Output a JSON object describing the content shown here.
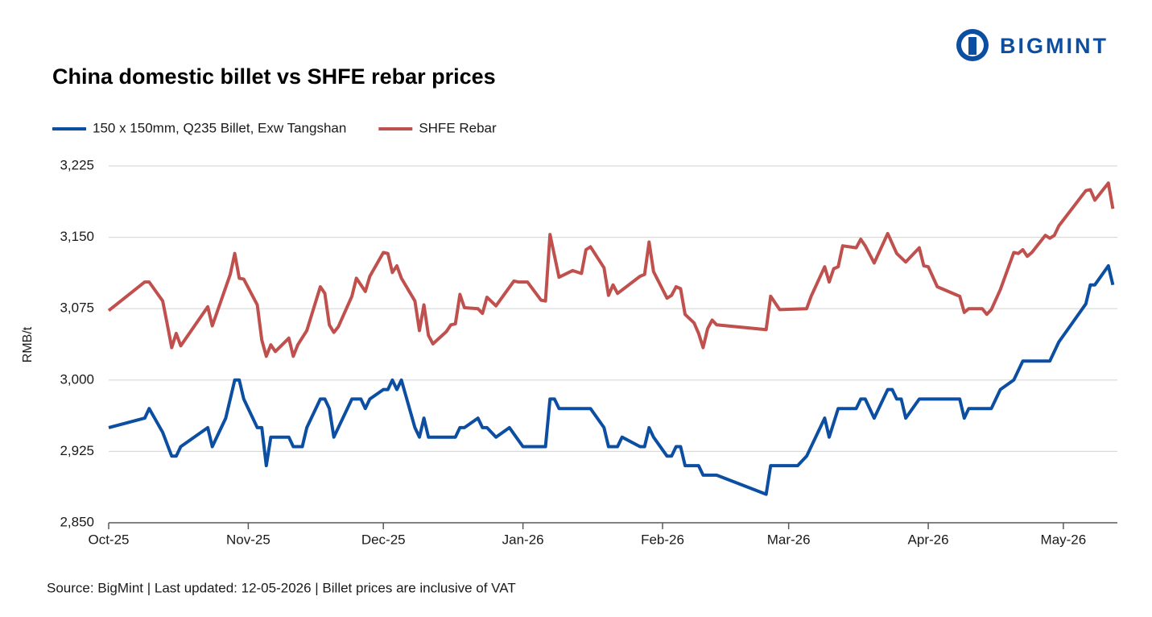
{
  "logo": "BIGMINT",
  "chart_data": {
    "type": "line",
    "title": "China domestic billet vs SHFE rebar prices",
    "y_label": "RMB/t",
    "source": "Source: BigMint | Last updated: 12-05-2026 | Billet prices are inclusive of VAT",
    "xlim": [
      0,
      224
    ],
    "xticks": [
      {
        "value": 0,
        "label": "Oct-25"
      },
      {
        "value": 31,
        "label": "Nov-25"
      },
      {
        "value": 61,
        "label": "Dec-25"
      },
      {
        "value": 92,
        "label": "Jan-26"
      },
      {
        "value": 123,
        "label": "Feb-26"
      },
      {
        "value": 151,
        "label": "Mar-26"
      },
      {
        "value": 182,
        "label": "Apr-26"
      },
      {
        "value": 212,
        "label": "May-26"
      }
    ],
    "ylim": [
      2850,
      3225
    ],
    "yticks": [
      {
        "value": 2850,
        "label": "2,850"
      },
      {
        "value": 2925,
        "label": "2,925"
      },
      {
        "value": 3000,
        "label": "3,000"
      },
      {
        "value": 3075,
        "label": "3,075"
      },
      {
        "value": 3150,
        "label": "3,150"
      },
      {
        "value": 3225,
        "label": "3,225"
      }
    ],
    "grid": true,
    "legend": "top-left",
    "series": [
      {
        "name": "150 x 150mm, Q235 Billet, Exw Tangshan",
        "color": "#0b4ea2",
        "x": [
          0,
          8,
          9,
          12,
          14,
          15,
          16,
          22,
          23,
          26,
          28,
          29,
          30,
          33,
          34,
          35,
          36,
          40,
          41,
          43,
          44,
          47,
          48,
          49,
          50,
          54,
          56,
          57,
          58,
          61,
          62,
          63,
          64,
          65,
          68,
          69,
          70,
          71,
          77,
          78,
          79,
          82,
          83,
          84,
          86,
          89,
          92,
          97,
          98,
          99,
          100,
          107,
          110,
          111,
          113,
          114,
          118,
          119,
          120,
          121,
          124,
          125,
          126,
          127,
          128,
          131,
          132,
          135,
          146,
          147,
          153,
          155,
          159,
          160,
          162,
          166,
          167,
          168,
          170,
          173,
          174,
          175,
          176,
          177,
          180,
          189,
          190,
          191,
          196,
          198,
          201,
          203,
          209,
          211,
          214,
          217,
          218,
          219,
          222,
          223
        ],
        "values": [
          2950,
          2960,
          2970,
          2945,
          2920,
          2920,
          2930,
          2950,
          2930,
          2960,
          3000,
          3000,
          2980,
          2950,
          2950,
          2910,
          2940,
          2940,
          2930,
          2930,
          2950,
          2980,
          2980,
          2970,
          2940,
          2980,
          2980,
          2970,
          2980,
          2990,
          2990,
          3000,
          2990,
          3000,
          2950,
          2940,
          2960,
          2940,
          2940,
          2950,
          2950,
          2960,
          2950,
          2950,
          2940,
          2950,
          2930,
          2930,
          2980,
          2980,
          2970,
          2970,
          2950,
          2930,
          2930,
          2940,
          2930,
          2930,
          2950,
          2940,
          2920,
          2920,
          2930,
          2930,
          2910,
          2910,
          2900,
          2900,
          2880,
          2910,
          2910,
          2920,
          2960,
          2940,
          2970,
          2970,
          2980,
          2980,
          2960,
          2990,
          2990,
          2980,
          2980,
          2960,
          2980,
          2980,
          2960,
          2970,
          2970,
          2990,
          3000,
          3020,
          3020,
          3040,
          3060,
          3080,
          3100,
          3100,
          3120,
          3100
        ]
      },
      {
        "name": "SHFE Rebar",
        "color": "#c0504d",
        "x": [
          0,
          8,
          9,
          12,
          13,
          14,
          15,
          16,
          22,
          23,
          27,
          28,
          29,
          30,
          33,
          34,
          35,
          36,
          37,
          40,
          41,
          42,
          44,
          47,
          48,
          49,
          50,
          51,
          54,
          55,
          57,
          58,
          61,
          62,
          63,
          64,
          65,
          68,
          69,
          70,
          71,
          72,
          75,
          76,
          77,
          78,
          79,
          82,
          83,
          84,
          86,
          90,
          91,
          93,
          96,
          97,
          98,
          100,
          103,
          105,
          106,
          107,
          110,
          111,
          112,
          113,
          118,
          119,
          120,
          121,
          124,
          125,
          126,
          127,
          128,
          130,
          131,
          132,
          133,
          134,
          135,
          146,
          147,
          149,
          155,
          156,
          159,
          160,
          161,
          162,
          163,
          166,
          167,
          168,
          170,
          173,
          175,
          177,
          180,
          181,
          182,
          184,
          188,
          189,
          190,
          191,
          194,
          195,
          196,
          198,
          201,
          202,
          203,
          204,
          205,
          208,
          209,
          210,
          211,
          217,
          218,
          219,
          222,
          223
        ],
        "values": [
          3073,
          3103,
          3103,
          3083,
          3059,
          3034,
          3049,
          3036,
          3077,
          3057,
          3111,
          3133,
          3107,
          3106,
          3079,
          3042,
          3025,
          3037,
          3030,
          3044,
          3025,
          3037,
          3052,
          3098,
          3091,
          3058,
          3050,
          3056,
          3088,
          3107,
          3093,
          3109,
          3134,
          3133,
          3113,
          3120,
          3107,
          3083,
          3052,
          3079,
          3047,
          3038,
          3051,
          3058,
          3059,
          3090,
          3076,
          3075,
          3070,
          3087,
          3078,
          3104,
          3103,
          3103,
          3084,
          3083,
          3153,
          3108,
          3115,
          3112,
          3137,
          3140,
          3118,
          3089,
          3100,
          3091,
          3109,
          3111,
          3145,
          3114,
          3086,
          3089,
          3098,
          3096,
          3069,
          3060,
          3049,
          3034,
          3054,
          3063,
          3058,
          3053,
          3088,
          3074,
          3075,
          3088,
          3119,
          3103,
          3117,
          3119,
          3141,
          3139,
          3148,
          3141,
          3123,
          3154,
          3133,
          3124,
          3139,
          3120,
          3119,
          3098,
          3090,
          3088,
          3071,
          3075,
          3075,
          3069,
          3074,
          3095,
          3134,
          3133,
          3137,
          3130,
          3134,
          3152,
          3149,
          3152,
          3162,
          3199,
          3200,
          3189,
          3207,
          3180
        ]
      }
    ]
  }
}
